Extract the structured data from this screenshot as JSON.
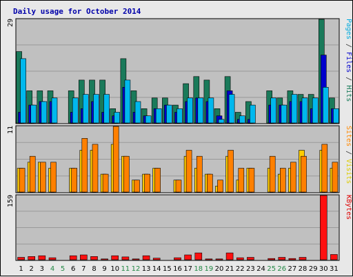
{
  "chart_data": {
    "type": "bar",
    "title": "Daily usage for October 2014",
    "categories": [
      "1",
      "2",
      "3",
      "4",
      "5",
      "6",
      "7",
      "8",
      "9",
      "10",
      "11",
      "12",
      "13",
      "14",
      "15",
      "16",
      "17",
      "18",
      "19",
      "20",
      "21",
      "22",
      "23",
      "24",
      "25",
      "26",
      "27",
      "28",
      "29",
      "30",
      "31"
    ],
    "weekend_days": [
      "4",
      "5",
      "11",
      "12",
      "18",
      "19",
      "25",
      "26"
    ],
    "panels": [
      {
        "name": "hits-files-pages",
        "max_label": "29",
        "ylim": [
          0,
          29
        ],
        "legend": [
          {
            "text": "Pages",
            "color": "#00aadd"
          },
          {
            "text": " / ",
            "color": "#333333"
          },
          {
            "text": "Files",
            "color": "#0000cc"
          },
          {
            "text": " / ",
            "color": "#333333"
          },
          {
            "text": "Hits",
            "color": "#117755"
          }
        ],
        "series": [
          {
            "name": "Hits",
            "color": "#1a7a5a",
            "values": [
              20,
              9,
              9,
              9,
              0,
              9,
              12,
              12,
              12,
              4,
              18,
              9,
              4,
              7,
              7,
              5,
              11,
              13,
              12,
              4,
              13,
              3,
              6,
              0,
              9,
              7,
              9,
              8,
              8,
              29,
              7
            ]
          },
          {
            "name": "Files",
            "color": "#0000cc",
            "values": [
              3,
              5,
              6,
              6,
              0,
              3,
              4,
              6,
              3,
              2,
              10,
              3,
              2,
              4,
              5,
              3,
              6,
              7,
              6,
              2,
              9,
              1,
              1,
              0,
              5,
              5,
              6,
              6,
              4,
              19,
              4
            ]
          },
          {
            "name": "Pages",
            "color": "#00b8ee",
            "values": [
              18,
              5,
              6,
              7,
              0,
              7,
              8,
              8,
              8,
              3,
              12,
              6,
              2,
              4,
              5,
              4,
              7,
              7,
              7,
              1,
              8,
              2,
              5,
              0,
              7,
              5,
              8,
              7,
              7,
              10,
              4
            ]
          }
        ]
      },
      {
        "name": "visits-sites",
        "max_label": "11",
        "ylim": [
          0,
          11
        ],
        "legend": [
          {
            "text": "Sites",
            "color": "#ff8800"
          },
          {
            "text": " / ",
            "color": "#333333"
          },
          {
            "text": "Visits",
            "color": "#ddcc00"
          }
        ],
        "series": [
          {
            "name": "Visits",
            "color": "#ffcc00",
            "values": [
              4,
              5,
              5,
              4,
              0,
              4,
              7,
              7,
              3,
              8,
              6,
              2,
              3,
              4,
              0,
              2,
              6,
              4,
              3,
              1,
              6,
              2,
              4,
              0,
              4,
              3,
              4,
              7,
              0,
              7,
              4
            ]
          },
          {
            "name": "Sites",
            "color": "#ff8000",
            "values": [
              4,
              6,
              5,
              5,
              0,
              4,
              9,
              8,
              3,
              11,
              6,
              2,
              3,
              4,
              0,
              2,
              7,
              6,
              3,
              2,
              7,
              4,
              4,
              0,
              6,
              4,
              5,
              6,
              0,
              8,
              5
            ]
          }
        ]
      },
      {
        "name": "kbytes",
        "max_label": "159",
        "ylim": [
          0,
          159
        ],
        "legend": [
          {
            "text": "KBytes",
            "color": "#dd0000"
          }
        ],
        "series": [
          {
            "name": "KBytes",
            "color": "#ff1010",
            "values": [
              6,
              8,
              10,
              5,
              0,
              10,
              12,
              8,
              2,
              10,
              7,
              2,
              10,
              4,
              0,
              5,
              12,
              17,
              2,
              2,
              17,
              5,
              6,
              0,
              3,
              6,
              3,
              6,
              0,
              159,
              13
            ]
          }
        ]
      }
    ]
  }
}
